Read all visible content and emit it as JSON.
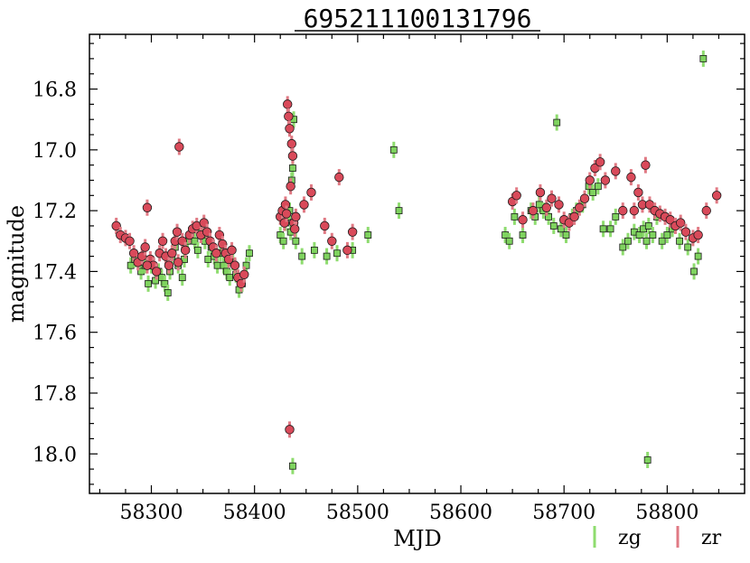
{
  "chart_data": {
    "type": "scatter",
    "title": "695211100131796",
    "xlabel": "MJD",
    "ylabel": "magnitude",
    "xlim": [
      58240,
      58875
    ],
    "ylim": [
      18.13,
      16.62
    ],
    "y_inverted": true,
    "grid": false,
    "legend_placement": "bottom-right",
    "x_ticks": [
      58300,
      58400,
      58500,
      58600,
      58700,
      58800
    ],
    "y_ticks": [
      16.8,
      17.0,
      17.2,
      17.4,
      17.6,
      17.8,
      18.0
    ],
    "x_tick_labels": [
      "58300",
      "58400",
      "58500",
      "58600",
      "58700",
      "58800"
    ],
    "y_tick_labels": [
      "16.8",
      "17.0",
      "17.2",
      "17.4",
      "17.6",
      "17.8",
      "18.0"
    ],
    "colors": {
      "zg": "#7fd35f",
      "zr": "#d94a5a",
      "zg_err": "#8edc6e",
      "zr_err": "#e07a84"
    },
    "series": [
      {
        "name": "zg",
        "marker": "square",
        "x": [
          58280,
          58284,
          58290,
          58294,
          58297,
          58300,
          58304,
          58307,
          58310,
          58313,
          58316,
          58318,
          58320,
          58323,
          58326,
          58330,
          58332,
          58335,
          58338,
          58342,
          58345,
          58348,
          58352,
          58355,
          58358,
          58361,
          58364,
          58367,
          58370,
          58373,
          58376,
          58379,
          58382,
          58385,
          58388,
          58392,
          58395,
          58425,
          58428,
          58430,
          58432,
          58434,
          58435,
          58436,
          58437,
          58438,
          58440,
          58446,
          58458,
          58470,
          58480,
          58495,
          58510,
          58535,
          58540,
          58643,
          58647,
          58652,
          58660,
          58668,
          58672,
          58676,
          58680,
          58685,
          58690,
          58693,
          58697,
          58702,
          58708,
          58712,
          58718,
          58724,
          58728,
          58733,
          58738,
          58745,
          58750,
          58757,
          58762,
          58768,
          58773,
          58777,
          58780,
          58782,
          58786,
          58790,
          58795,
          58800,
          58805,
          58812,
          58820,
          58826,
          58830,
          58835,
          58437,
          58781
        ],
        "y": [
          17.38,
          17.36,
          17.4,
          17.38,
          17.44,
          17.38,
          17.43,
          17.4,
          17.42,
          17.44,
          17.47,
          17.4,
          17.35,
          17.32,
          17.38,
          17.42,
          17.36,
          17.3,
          17.28,
          17.3,
          17.33,
          17.27,
          17.3,
          17.36,
          17.32,
          17.35,
          17.38,
          17.34,
          17.38,
          17.4,
          17.42,
          17.37,
          17.41,
          17.46,
          17.44,
          17.38,
          17.34,
          17.28,
          17.3,
          17.24,
          17.22,
          17.2,
          17.27,
          17.1,
          17.06,
          16.9,
          17.3,
          17.35,
          17.33,
          17.35,
          17.34,
          17.33,
          17.28,
          17.0,
          17.2,
          17.28,
          17.3,
          17.22,
          17.28,
          17.2,
          17.22,
          17.18,
          17.2,
          17.22,
          17.25,
          16.91,
          17.26,
          17.28,
          17.22,
          17.2,
          17.18,
          17.12,
          17.14,
          17.12,
          17.26,
          17.26,
          17.22,
          17.32,
          17.3,
          17.27,
          17.28,
          17.26,
          17.3,
          17.25,
          17.28,
          17.22,
          17.3,
          17.28,
          17.26,
          17.3,
          17.32,
          17.4,
          17.35,
          16.7,
          18.04,
          18.02
        ]
      },
      {
        "name": "zr",
        "marker": "circle",
        "x": [
          58266,
          58270,
          58275,
          58279,
          58283,
          58287,
          58291,
          58294,
          58296,
          58299,
          58302,
          58305,
          58308,
          58311,
          58314,
          58317,
          58320,
          58323,
          58325,
          58327,
          58330,
          58333,
          58337,
          58340,
          58344,
          58348,
          58351,
          58354,
          58357,
          58360,
          58363,
          58366,
          58369,
          58372,
          58375,
          58378,
          58381,
          58384,
          58387,
          58390,
          58425,
          58427,
          58429,
          58430,
          58431,
          58432,
          58433,
          58434,
          58435,
          58436,
          58437,
          58438,
          58439,
          58440,
          58448,
          58455,
          58468,
          58475,
          58482,
          58490,
          58495,
          58650,
          58654,
          58660,
          58670,
          58677,
          58683,
          58688,
          58695,
          58700,
          58705,
          58710,
          58715,
          58720,
          58725,
          58730,
          58735,
          58740,
          58750,
          58757,
          58765,
          58768,
          58772,
          58776,
          58779,
          58783,
          58788,
          58793,
          58798,
          58803,
          58808,
          58813,
          58818,
          58825,
          58830,
          58838,
          58848,
          58296,
          58326,
          58434
        ],
        "y": [
          17.25,
          17.28,
          17.29,
          17.3,
          17.34,
          17.37,
          17.35,
          17.32,
          17.19,
          17.36,
          17.38,
          17.4,
          17.34,
          17.3,
          17.35,
          17.38,
          17.34,
          17.3,
          17.27,
          16.99,
          17.3,
          17.33,
          17.28,
          17.26,
          17.25,
          17.28,
          17.24,
          17.27,
          17.3,
          17.32,
          17.34,
          17.28,
          17.31,
          17.34,
          17.36,
          17.33,
          17.38,
          17.42,
          17.44,
          17.41,
          17.22,
          17.2,
          17.24,
          17.18,
          17.21,
          16.85,
          16.89,
          16.93,
          17.12,
          16.98,
          17.02,
          17.24,
          17.26,
          17.22,
          17.18,
          17.14,
          17.25,
          17.3,
          17.09,
          17.33,
          17.27,
          17.17,
          17.15,
          17.23,
          17.2,
          17.14,
          17.19,
          17.16,
          17.18,
          17.23,
          17.24,
          17.22,
          17.19,
          17.16,
          17.1,
          17.06,
          17.04,
          17.1,
          17.07,
          17.2,
          17.09,
          17.2,
          17.14,
          17.18,
          17.05,
          17.18,
          17.2,
          17.21,
          17.22,
          17.23,
          17.25,
          17.24,
          17.27,
          17.29,
          17.28,
          17.2,
          17.15,
          17.38,
          17.37,
          17.92
        ]
      }
    ]
  }
}
